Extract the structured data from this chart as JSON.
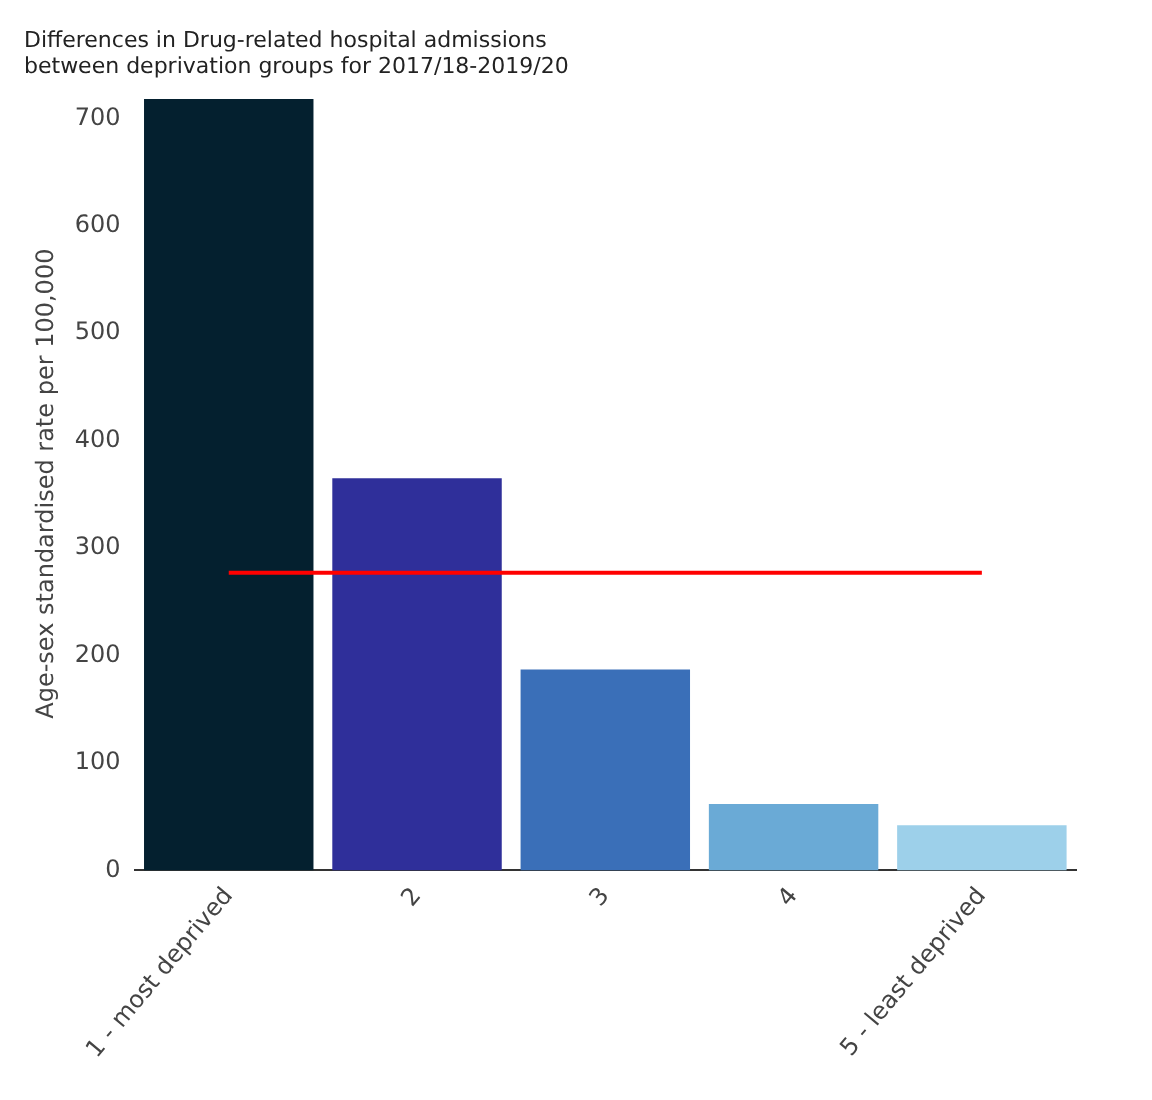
{
  "chart_data": {
    "type": "bar",
    "title": "Differences in Drug-related hospital admissions\nbetween deprivation groups for 2017/18-2019/20",
    "ylabel": "Age-sex standardised rate per 100,000",
    "categories": [
      "1 - most deprived",
      "2",
      "3",
      "4",
      "5 - least deprived"
    ],
    "series": [
      {
        "colors": [
          "#04202f",
          "#2f2f9a",
          "#3a6fb8",
          "#6aaad6",
          "#9dd0ea"
        ],
        "values": [
          718,
          365,
          187,
          62,
          42
        ]
      },
      {
        "type": "line",
        "color": "#ff0000",
        "values": [
          277,
          277,
          277,
          277,
          277
        ]
      }
    ],
    "ylim": [
      0,
      720
    ],
    "yticks": [
      0,
      100,
      200,
      300,
      400,
      500,
      600,
      700
    ],
    "grid": false,
    "legend": false,
    "marker": "none"
  }
}
